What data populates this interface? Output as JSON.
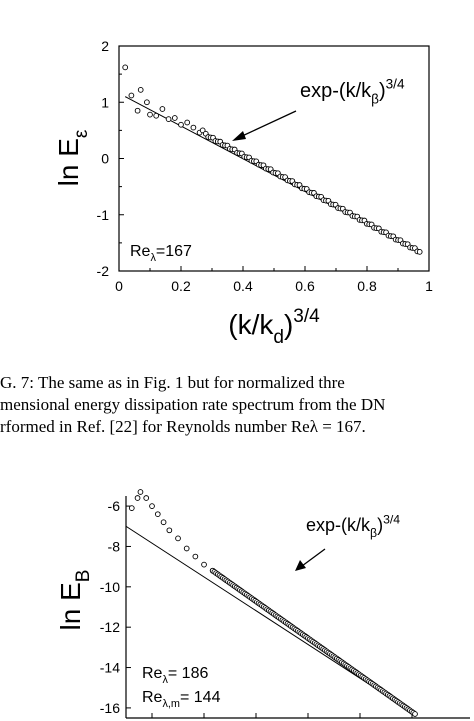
{
  "chart_data": [
    {
      "type": "scatter",
      "ylabel": "ln E",
      "ylabel_sub": "ε",
      "xlabel": "(k/k",
      "xlabel_sub": "d",
      "xlabel_tail": ")",
      "xlabel_sup": "3/4",
      "xlim": [
        0,
        1
      ],
      "ylim": [
        -2,
        2
      ],
      "xticks": [
        0,
        0.2,
        0.4,
        0.6,
        0.8,
        1
      ],
      "xtick_labels": [
        "0",
        "0.2",
        "0.4",
        "0.6",
        "0.8",
        "1"
      ],
      "yticks": [
        2,
        1,
        0,
        -1,
        -2
      ],
      "ytick_labels": [
        "2",
        "1",
        "0",
        "-1",
        "-2"
      ],
      "annotation": {
        "text": "exp-(k/k",
        "sub": "β",
        "tail": ")",
        "sup": "3/4"
      },
      "label": {
        "text": "Re",
        "sub": "λ",
        "tail": "=167"
      },
      "fit_line": {
        "x": [
          0.02,
          0.97
        ],
        "y": [
          1.1,
          -1.66
        ]
      },
      "points_sparse": [
        [
          0.02,
          1.62
        ],
        [
          0.04,
          1.12
        ],
        [
          0.06,
          0.85
        ],
        [
          0.07,
          1.22
        ],
        [
          0.09,
          1.0
        ],
        [
          0.1,
          0.78
        ],
        [
          0.12,
          0.76
        ],
        [
          0.14,
          0.88
        ],
        [
          0.16,
          0.7
        ],
        [
          0.18,
          0.72
        ],
        [
          0.2,
          0.6
        ],
        [
          0.22,
          0.64
        ],
        [
          0.24,
          0.55
        ],
        [
          0.26,
          0.46
        ],
        [
          0.27,
          0.5
        ]
      ],
      "points_dense": {
        "x_start": 0.28,
        "x_end": 0.97,
        "count": 90,
        "y_start": 0.42,
        "y_end": -1.66
      }
    },
    {
      "type": "scatter",
      "ylabel": "ln E",
      "ylabel_sub": "B",
      "ylim": [
        -16.5,
        -5.5
      ],
      "yticks": [
        -6,
        -8,
        -10,
        -12,
        -14,
        -16
      ],
      "ytick_labels": [
        "-6",
        "-8",
        "-10",
        "-12",
        "-14",
        "-16"
      ],
      "annotation": {
        "text": "exp-(k/k",
        "sub": "β",
        "tail": ")",
        "sup": "3/4"
      },
      "labels": [
        {
          "text": "Re",
          "sub": "λ",
          "tail": "= 186"
        },
        {
          "text": "Re",
          "sub": "λ,m",
          "tail": "= 144"
        }
      ],
      "fit_line": {
        "x": [
          0.0,
          1.0
        ],
        "y": [
          -7.0,
          -16.3
        ]
      },
      "points_upturn": [
        [
          0.02,
          -6.1
        ],
        [
          0.04,
          -5.6
        ],
        [
          0.05,
          -5.3
        ],
        [
          0.07,
          -5.6
        ],
        [
          0.09,
          -6.0
        ],
        [
          0.11,
          -6.4
        ],
        [
          0.13,
          -6.8
        ],
        [
          0.15,
          -7.2
        ],
        [
          0.18,
          -7.6
        ],
        [
          0.21,
          -8.1
        ],
        [
          0.24,
          -8.5
        ],
        [
          0.27,
          -8.9
        ],
        [
          0.3,
          -9.2
        ]
      ],
      "points_dense": {
        "x_start": 0.3,
        "x_end": 1.0,
        "count": 120,
        "y_start": -9.2,
        "y_end": -16.3
      }
    }
  ],
  "caption": {
    "lines": [
      "G. 7:    The same as in Fig.  1 but for normalized thre",
      "mensional energy dissipation rate spectrum from the DN",
      "rformed in Ref. [22] for Reynolds number Reλ = 167."
    ]
  }
}
